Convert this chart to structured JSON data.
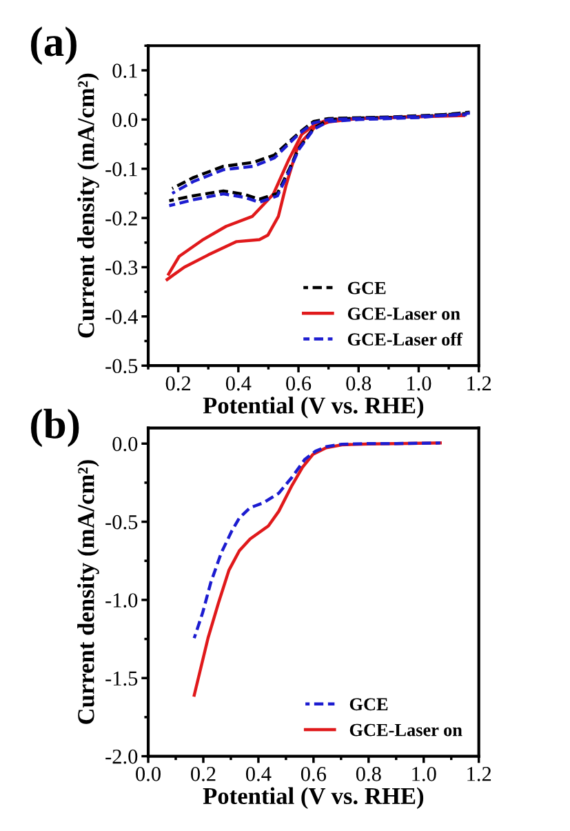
{
  "chart_data": [
    {
      "type": "line",
      "title": "(a)",
      "xlabel": "Potential (V vs. RHE)",
      "ylabel": "Current density (mA/cm²)",
      "xlim": [
        0.1,
        1.2
      ],
      "ylim": [
        -0.5,
        0.15
      ],
      "xticks": [
        {
          "value": 0.2,
          "label": "0.2"
        },
        {
          "value": 0.4,
          "label": "0.4"
        },
        {
          "value": 0.6,
          "label": "0.6"
        },
        {
          "value": 0.8,
          "label": "0.8"
        },
        {
          "value": 1.0,
          "label": "1.0"
        },
        {
          "value": 1.2,
          "label": "1.2"
        }
      ],
      "yticks": [
        {
          "value": 0.1,
          "label": "0.1"
        },
        {
          "value": 0.0,
          "label": "0.0"
        },
        {
          "value": -0.1,
          "label": "-0.1"
        },
        {
          "value": -0.2,
          "label": "-0.2"
        },
        {
          "value": -0.3,
          "label": "-0.3"
        },
        {
          "value": -0.4,
          "label": "-0.4"
        },
        {
          "value": -0.5,
          "label": "-0.5"
        }
      ],
      "legend": "bottom right",
      "grid": false,
      "series": [
        {
          "name": "GCE",
          "color": "#000000",
          "line_style": "dashed",
          "x": [
            0.17,
            0.25,
            0.35,
            0.42,
            0.47,
            0.53,
            0.57,
            0.6,
            0.65,
            0.7,
            0.8,
            1.0,
            1.17
          ],
          "values": [
            -0.165,
            -0.155,
            -0.145,
            -0.152,
            -0.162,
            -0.15,
            -0.1,
            -0.06,
            -0.018,
            0.0,
            0.003,
            0.005,
            0.015
          ]
        },
        {
          "color": "#000000",
          "line_style": "dashed",
          "x": [
            0.18,
            0.25,
            0.35,
            0.45,
            0.52,
            0.6,
            0.65,
            0.7,
            0.9,
            1.16
          ],
          "values": [
            -0.14,
            -0.118,
            -0.095,
            -0.087,
            -0.072,
            -0.028,
            -0.004,
            0.002,
            0.005,
            0.012
          ]
        },
        {
          "name": "GCE-Laser on",
          "color": "#e0191b",
          "line_style": "solid",
          "x": [
            0.163,
            0.22,
            0.3,
            0.394,
            0.47,
            0.498,
            0.533,
            0.559,
            0.594,
            0.611,
            0.655,
            0.7,
            0.8,
            1.0,
            1.15
          ],
          "values": [
            -0.325,
            -0.3,
            -0.275,
            -0.248,
            -0.244,
            -0.235,
            -0.197,
            -0.133,
            -0.062,
            -0.045,
            -0.015,
            -0.005,
            0.002,
            0.006,
            0.01
          ]
        },
        {
          "color": "#e0191b",
          "line_style": "solid",
          "x": [
            0.168,
            0.203,
            0.28,
            0.359,
            0.446,
            0.516,
            0.568,
            0.611,
            0.655,
            0.7,
            0.9,
            1.15
          ],
          "values": [
            -0.314,
            -0.278,
            -0.245,
            -0.217,
            -0.197,
            -0.152,
            -0.081,
            -0.03,
            -0.01,
            0.0,
            0.004,
            0.008
          ]
        },
        {
          "name": "GCE-Laser off",
          "color": "#1c1cd0",
          "line_style": "dashed",
          "x": [
            0.17,
            0.25,
            0.35,
            0.42,
            0.47,
            0.53,
            0.57,
            0.6,
            0.65,
            0.7,
            0.8,
            1.0,
            1.17
          ],
          "values": [
            -0.175,
            -0.163,
            -0.151,
            -0.158,
            -0.168,
            -0.155,
            -0.104,
            -0.062,
            -0.02,
            -0.004,
            0.0,
            0.004,
            0.013
          ]
        },
        {
          "color": "#1c1cd0",
          "line_style": "dashed",
          "x": [
            0.18,
            0.25,
            0.35,
            0.45,
            0.52,
            0.6,
            0.65,
            0.7,
            0.9,
            1.16
          ],
          "values": [
            -0.15,
            -0.126,
            -0.102,
            -0.095,
            -0.078,
            -0.03,
            -0.007,
            0.0,
            0.004,
            0.01
          ]
        }
      ]
    },
    {
      "type": "line",
      "title": "(b)",
      "xlabel": "Potential (V vs. RHE)",
      "ylabel": "Current density (mA/cm²)",
      "xlim": [
        0.0,
        1.2
      ],
      "ylim": [
        -2.0,
        0.1
      ],
      "xticks": [
        {
          "value": 0.0,
          "label": "0.0"
        },
        {
          "value": 0.2,
          "label": "0.2"
        },
        {
          "value": 0.4,
          "label": "0.4"
        },
        {
          "value": 0.6,
          "label": "0.6"
        },
        {
          "value": 0.8,
          "label": "0.8"
        },
        {
          "value": 1.0,
          "label": "1.0"
        },
        {
          "value": 1.2,
          "label": "1.2"
        }
      ],
      "yticks": [
        {
          "value": 0.0,
          "label": "0.0"
        },
        {
          "value": -0.5,
          "label": "-0.5"
        },
        {
          "value": -1.0,
          "label": "-1.0"
        },
        {
          "value": -1.5,
          "label": "-1.5"
        },
        {
          "value": -2.0,
          "label": "-2.0"
        }
      ],
      "legend": "bottom right",
      "grid": false,
      "series": [
        {
          "name": "GCE",
          "color": "#1c1cd0",
          "line_style": "dashed",
          "x": [
            0.167,
            0.198,
            0.227,
            0.265,
            0.303,
            0.331,
            0.37,
            0.417,
            0.474,
            0.522,
            0.569,
            0.608,
            0.646,
            0.703,
            0.8,
            0.9,
            1.06
          ],
          "values": [
            -1.245,
            -1.08,
            -0.89,
            -0.7,
            -0.56,
            -0.475,
            -0.41,
            -0.38,
            -0.317,
            -0.215,
            -0.1,
            -0.048,
            -0.02,
            -0.004,
            0.0,
            0.0,
            0.004
          ]
        },
        {
          "name": "GCE-Laser on",
          "color": "#e0191b",
          "line_style": "solid",
          "x": [
            0.167,
            0.217,
            0.255,
            0.293,
            0.331,
            0.37,
            0.436,
            0.474,
            0.522,
            0.56,
            0.598,
            0.646,
            0.703,
            0.8,
            0.9,
            1.06
          ],
          "values": [
            -1.61,
            -1.245,
            -1.02,
            -0.81,
            -0.685,
            -0.61,
            -0.527,
            -0.433,
            -0.267,
            -0.152,
            -0.069,
            -0.027,
            -0.008,
            -0.002,
            0.0,
            0.004
          ]
        }
      ]
    }
  ]
}
